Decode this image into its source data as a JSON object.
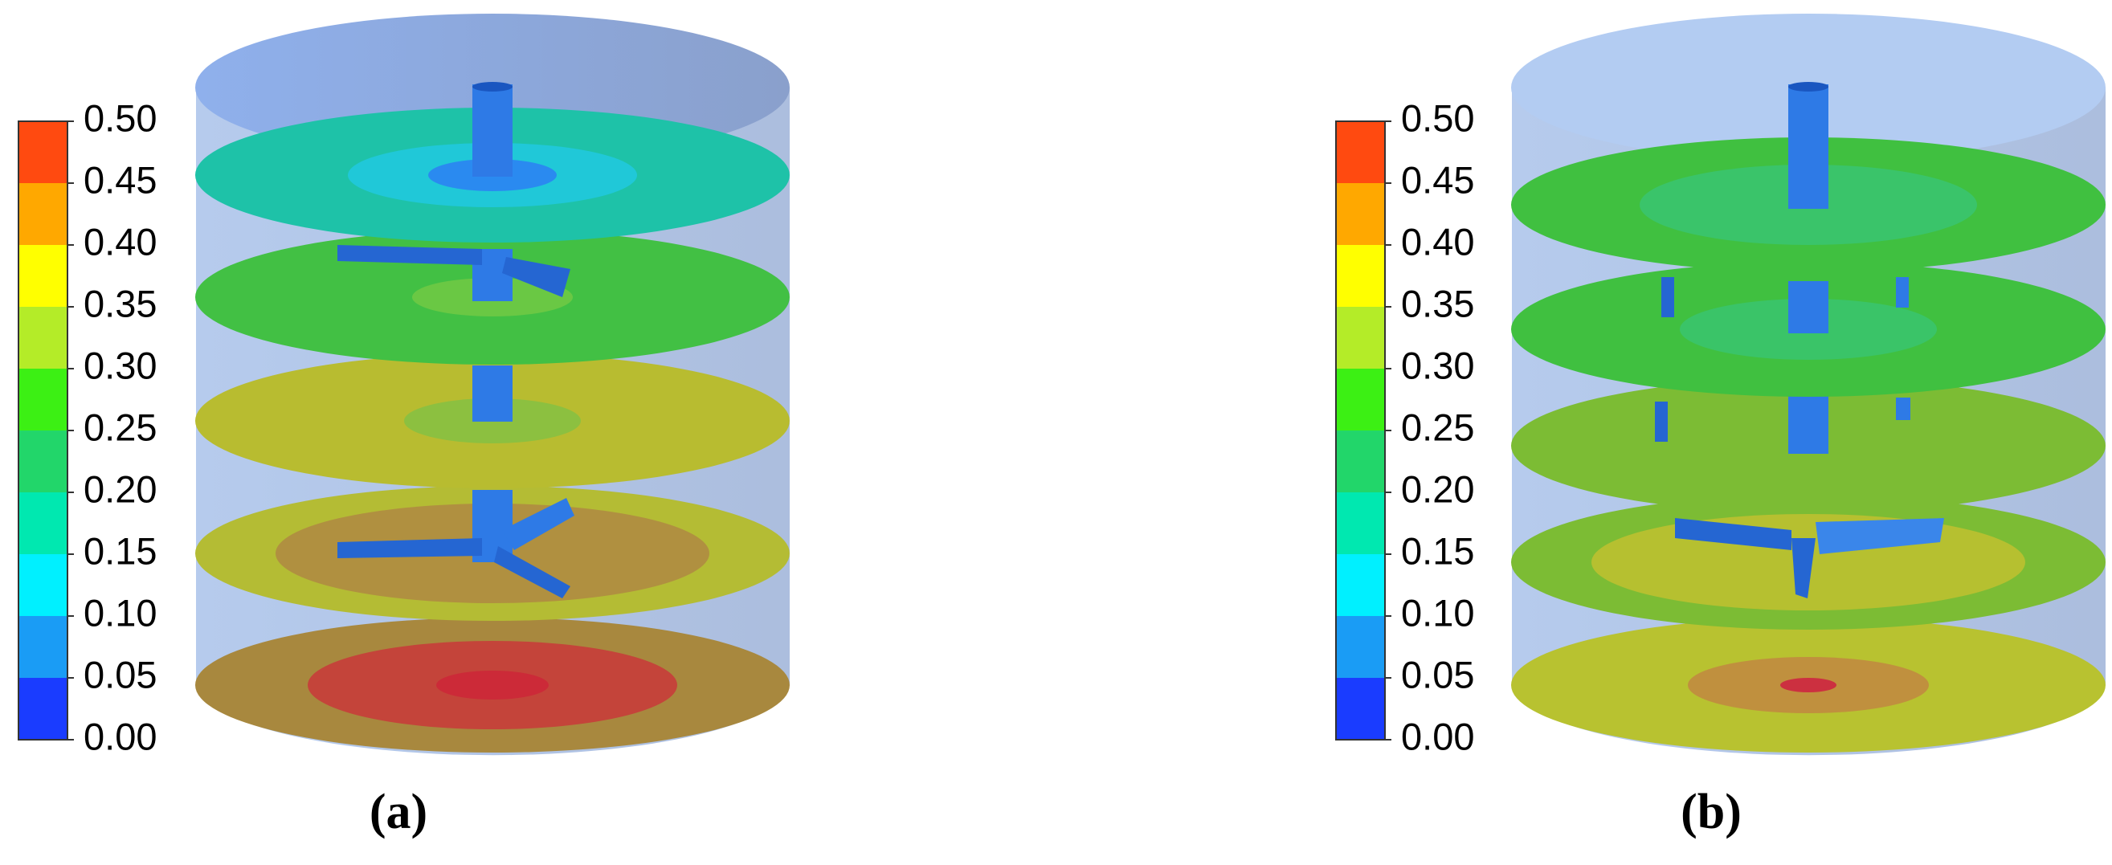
{
  "panels": [
    {
      "label": "(a)",
      "colorbar": {
        "ticks": [
          "0.00",
          "0.05",
          "0.10",
          "0.15",
          "0.20",
          "0.25",
          "0.30",
          "0.35",
          "0.40",
          "0.45",
          "0.50"
        ],
        "colors": [
          "#1a3cff",
          "#1a9cf5",
          "#00f0ff",
          "#00e8b0",
          "#22d66a",
          "#3cf014",
          "#b4ec28",
          "#ffff00",
          "#ffa800",
          "#ff4a10"
        ]
      }
    },
    {
      "label": "(b)",
      "colorbar": {
        "ticks": [
          "0.00",
          "0.05",
          "0.10",
          "0.15",
          "0.20",
          "0.25",
          "0.30",
          "0.35",
          "0.40",
          "0.45",
          "0.50"
        ],
        "colors": [
          "#1a3cff",
          "#1a9cf5",
          "#00f0ff",
          "#00e8b0",
          "#22d66a",
          "#3cf014",
          "#b4ec28",
          "#ffff00",
          "#ffa800",
          "#ff4a10"
        ]
      }
    }
  ]
}
